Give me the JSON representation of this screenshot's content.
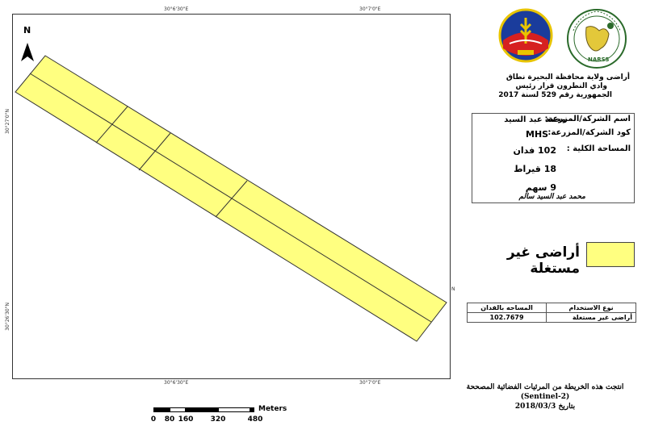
{
  "map": {
    "coords_top": [
      "30°6'30\"E",
      "30°7'0\"E"
    ],
    "coords_bottom": [
      "30°6'30\"E",
      "30°7'0\"E"
    ],
    "coords_left": [
      "30°27'0\"N",
      "30°26'30\"N"
    ],
    "coords_right": [
      "N"
    ],
    "north_label": "N",
    "parcel_fill": "#ffff80",
    "parcel_stroke": "#333333"
  },
  "title": {
    "line1": "أراضى ولاية محافظة البحيرة نطاق",
    "line2": "وادي النطرون قرار رئيس",
    "line3": "الجمهورية رقم 529 لسنة 2017"
  },
  "logos": {
    "narss_caption": "NARSS"
  },
  "owner": {
    "company_label": "اسم الشركة/المزرعة:",
    "company_value": "محمد عبد السيد",
    "code_label": "كود الشركة/المزرعة:",
    "code_value": "MHS",
    "area_label": "المساحة الكلية :",
    "feddan": "102 فدان",
    "qirat": "18 قيراط",
    "sahm": "9 سهم",
    "signature": "محمد عبد السيد سالم"
  },
  "legend": {
    "label": "أراضى غير مستغلة",
    "color": "#ffff80"
  },
  "table": {
    "headers": [
      "المساحه بالفدان",
      "نوع الاستخدام"
    ],
    "rows": [
      [
        "102.7679",
        "أراضى غير مستغلة"
      ]
    ]
  },
  "scale": {
    "unit": "Meters",
    "ticks": [
      "0",
      "80",
      "160",
      "320",
      "480"
    ]
  },
  "credit": {
    "line1": "انتجت هذه الخريطة من المرئيات الفضائية المصححة",
    "line2": "(Sentinel-2)",
    "line3": "بتاريخ 2018/03/3"
  }
}
